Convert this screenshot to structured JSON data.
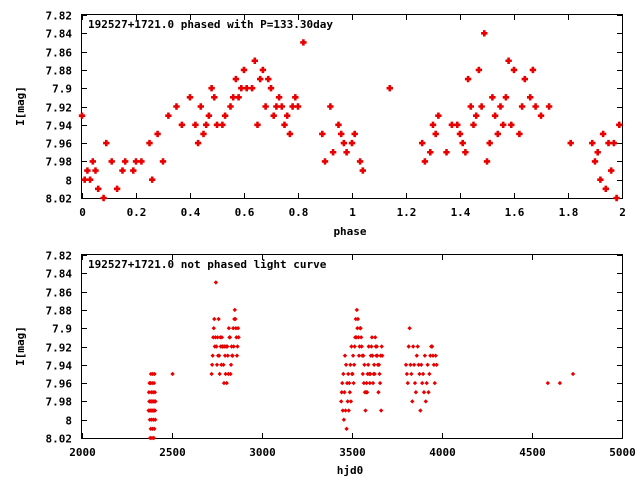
{
  "chart_data": [
    {
      "type": "scatter",
      "title": "192527+1721.0 phased with P=133.30day",
      "xlabel": "phase",
      "ylabel": "I[mag]",
      "xlim": [
        0,
        2
      ],
      "ylim": [
        7.82,
        8.02
      ],
      "y_inverted": true,
      "grid": false,
      "xticks": [
        "0",
        "0.2",
        "0.4",
        "0.6",
        "0.8",
        "1",
        "1.2",
        "1.4",
        "1.6",
        "1.8",
        "2"
      ],
      "yticks": [
        "7.82",
        "7.84",
        "7.86",
        "7.88",
        "7.9",
        "7.92",
        "7.94",
        "7.96",
        "7.98",
        "8",
        "8.02"
      ],
      "series": [
        {
          "color": "#e80000",
          "x": [
            0.0,
            0.01,
            0.02,
            0.03,
            0.04,
            0.05,
            0.06,
            0.08,
            0.09,
            0.11,
            0.13,
            0.15,
            0.16,
            0.19,
            0.2,
            0.22,
            0.25,
            0.26,
            0.28,
            0.3,
            0.32,
            0.35,
            0.37,
            0.4,
            0.42,
            0.43,
            0.44,
            0.45,
            0.46,
            0.47,
            0.48,
            0.49,
            0.5,
            0.52,
            0.53,
            0.55,
            0.56,
            0.57,
            0.58,
            0.59,
            0.6,
            0.61,
            0.63,
            0.64,
            0.65,
            0.66,
            0.67,
            0.68,
            0.69,
            0.7,
            0.71,
            0.72,
            0.73,
            0.74,
            0.75,
            0.76,
            0.77,
            0.78,
            0.79,
            0.8,
            0.82,
            0.89,
            0.9,
            0.92,
            0.93,
            0.95,
            0.96,
            0.97,
            0.98,
            1.0,
            1.01,
            1.03,
            1.04,
            1.14,
            1.26,
            1.27,
            1.29,
            1.3,
            1.31,
            1.32,
            1.35,
            1.37,
            1.39,
            1.4,
            1.41,
            1.42,
            1.43,
            1.44,
            1.45,
            1.46,
            1.47,
            1.48,
            1.49,
            1.5,
            1.51,
            1.52,
            1.53,
            1.54,
            1.55,
            1.56,
            1.57,
            1.58,
            1.59,
            1.6,
            1.62,
            1.63,
            1.64,
            1.66,
            1.67,
            1.68,
            1.7,
            1.73,
            1.81,
            1.89,
            1.9,
            1.91,
            1.92,
            1.93,
            1.94,
            1.95,
            1.96,
            1.97,
            1.98,
            1.99
          ],
          "y": [
            7.93,
            8.0,
            7.99,
            8.0,
            7.98,
            7.99,
            8.01,
            8.02,
            7.96,
            7.98,
            8.01,
            7.99,
            7.98,
            7.99,
            7.98,
            7.98,
            7.96,
            8.0,
            7.95,
            7.98,
            7.93,
            7.92,
            7.94,
            7.91,
            7.94,
            7.96,
            7.92,
            7.95,
            7.94,
            7.93,
            7.9,
            7.91,
            7.94,
            7.94,
            7.93,
            7.92,
            7.91,
            7.89,
            7.91,
            7.9,
            7.88,
            7.9,
            7.9,
            7.87,
            7.94,
            7.89,
            7.88,
            7.92,
            7.89,
            7.9,
            7.93,
            7.92,
            7.91,
            7.92,
            7.94,
            7.93,
            7.95,
            7.92,
            7.91,
            7.92,
            7.85,
            7.95,
            7.98,
            7.92,
            7.97,
            7.94,
            7.95,
            7.96,
            7.97,
            7.96,
            7.95,
            7.98,
            7.99,
            7.9,
            7.96,
            7.98,
            7.97,
            7.94,
            7.95,
            7.93,
            7.97,
            7.94,
            7.94,
            7.95,
            7.96,
            7.97,
            7.89,
            7.92,
            7.94,
            7.93,
            7.88,
            7.92,
            7.84,
            7.98,
            7.96,
            7.91,
            7.93,
            7.95,
            7.92,
            7.94,
            7.91,
            7.87,
            7.94,
            7.88,
            7.95,
            7.92,
            7.89,
            7.91,
            7.88,
            7.92,
            7.93,
            7.92,
            7.96,
            7.96,
            7.98,
            7.97,
            8.0,
            7.95,
            8.01,
            7.96,
            7.99,
            7.96,
            8.02,
            7.94
          ],
          "marker": "cross",
          "marker_size": "large"
        }
      ]
    },
    {
      "type": "scatter",
      "title": "192527+1721.0 not phased light curve",
      "xlabel": "hjd0",
      "ylabel": "I[mag]",
      "xlim": [
        2000,
        5000
      ],
      "ylim": [
        7.82,
        8.02
      ],
      "y_inverted": true,
      "grid": false,
      "xticks": [
        "2000",
        "2500",
        "3000",
        "3500",
        "4000",
        "4500",
        "5000"
      ],
      "yticks": [
        "7.82",
        "7.84",
        "7.86",
        "7.88",
        "7.9",
        "7.92",
        "7.94",
        "7.96",
        "7.98",
        "8",
        "8.02"
      ],
      "series": [
        {
          "color": "#e80000",
          "x": [
            2370,
            2372,
            2374,
            2375,
            2376,
            2377,
            2378,
            2379,
            2380,
            2381,
            2382,
            2383,
            2384,
            2385,
            2386,
            2387,
            2388,
            2389,
            2390,
            2391,
            2392,
            2393,
            2394,
            2395,
            2396,
            2397,
            2398,
            2399,
            2400,
            2401,
            2402,
            2403,
            2404,
            2405,
            2406,
            2407,
            2408,
            2503,
            2720,
            2723,
            2726,
            2729,
            2732,
            2735,
            2738,
            2741,
            2744,
            2747,
            2750,
            2753,
            2756,
            2759,
            2762,
            2765,
            2768,
            2771,
            2774,
            2777,
            2780,
            2783,
            2786,
            2789,
            2792,
            2795,
            2798,
            2801,
            2804,
            2807,
            2810,
            2813,
            2816,
            2819,
            2822,
            2825,
            2828,
            2831,
            2834,
            2837,
            2840,
            2843,
            2846,
            2849,
            2852,
            2855,
            2858,
            2861,
            2864,
            2867,
            2870,
            3440,
            3443,
            3446,
            3449,
            3452,
            3455,
            3458,
            3461,
            3464,
            3467,
            3470,
            3473,
            3476,
            3479,
            3482,
            3485,
            3488,
            3491,
            3494,
            3497,
            3500,
            3503,
            3506,
            3509,
            3512,
            3515,
            3518,
            3521,
            3524,
            3527,
            3530,
            3533,
            3536,
            3539,
            3542,
            3545,
            3548,
            3551,
            3554,
            3557,
            3560,
            3563,
            3566,
            3569,
            3572,
            3575,
            3578,
            3581,
            3584,
            3587,
            3590,
            3593,
            3596,
            3599,
            3602,
            3605,
            3608,
            3611,
            3614,
            3617,
            3620,
            3623,
            3626,
            3629,
            3632,
            3635,
            3638,
            3641,
            3644,
            3647,
            3650,
            3653,
            3656,
            3659,
            3662,
            3665,
            3668,
            3800,
            3805,
            3810,
            3815,
            3820,
            3825,
            3830,
            3835,
            3840,
            3845,
            3850,
            3855,
            3860,
            3865,
            3870,
            3875,
            3880,
            3885,
            3890,
            3895,
            3900,
            3905,
            3910,
            3915,
            3920,
            3925,
            3930,
            3935,
            3940,
            3945,
            3950,
            3955,
            3960,
            3965,
            3970,
            4588,
            4655,
            4728
          ],
          "y": [
            7.99,
            7.97,
            7.98,
            7.96,
            7.99,
            8.0,
            7.98,
            8.02,
            7.96,
            7.99,
            8.01,
            7.95,
            7.98,
            7.97,
            7.99,
            8.0,
            7.98,
            8.02,
            7.96,
            7.99,
            8.01,
            7.95,
            7.98,
            7.97,
            7.99,
            8.0,
            7.98,
            8.02,
            7.96,
            7.99,
            8.01,
            7.95,
            7.98,
            7.97,
            7.99,
            8.0,
            7.98,
            7.95,
            7.95,
            7.94,
            7.93,
            7.91,
            7.9,
            7.89,
            7.92,
            7.91,
            7.85,
            7.92,
            7.94,
            7.91,
            7.93,
            7.89,
            7.93,
            7.95,
            7.91,
            7.92,
            7.94,
            7.91,
            7.92,
            7.92,
            7.94,
            7.96,
            7.92,
            7.93,
            7.95,
            7.92,
            7.96,
            7.92,
            7.93,
            7.95,
            7.9,
            7.91,
            7.91,
            7.95,
            7.94,
            7.92,
            7.93,
            7.93,
            7.9,
            7.92,
            7.89,
            7.88,
            7.89,
            7.9,
            7.91,
            7.93,
            7.92,
            7.9,
            7.91,
            7.98,
            7.97,
            7.96,
            7.99,
            7.95,
            8.0,
            7.97,
            7.93,
            7.99,
            7.94,
            8.01,
            7.96,
            7.98,
            7.95,
            7.99,
            7.96,
            7.97,
            7.94,
            7.98,
            7.92,
            7.95,
            7.95,
            7.93,
            7.96,
            7.94,
            7.92,
            7.91,
            7.89,
            7.91,
            7.88,
            7.9,
            7.89,
            7.91,
            7.93,
            7.92,
            7.9,
            7.9,
            7.91,
            7.92,
            7.93,
            7.95,
            7.93,
            7.96,
            7.94,
            7.97,
            7.99,
            7.97,
            7.96,
            7.97,
            7.95,
            7.94,
            7.92,
            7.95,
            7.96,
            7.95,
            7.93,
            7.92,
            7.91,
            7.93,
            7.96,
            7.95,
            7.94,
            7.95,
            7.91,
            7.92,
            7.93,
            7.92,
            7.93,
            7.94,
            7.97,
            7.94,
            7.95,
            7.96,
            7.93,
            7.99,
            7.92,
            7.93,
            7.94,
            7.95,
            7.96,
            7.92,
            7.9,
            7.94,
            7.95,
            7.98,
            7.92,
            7.94,
            7.96,
            7.97,
            7.93,
            7.92,
            7.94,
            7.95,
            7.99,
            7.94,
            7.96,
            7.95,
            7.97,
            7.93,
            7.98,
            7.96,
            7.94,
            7.97,
            7.95,
            7.93,
            7.92,
            7.92,
            7.93,
            7.94,
            7.96,
            7.93,
            7.94,
            7.96,
            7.96,
            7.95
          ],
          "marker": "diamond",
          "marker_size": "small"
        }
      ]
    }
  ]
}
